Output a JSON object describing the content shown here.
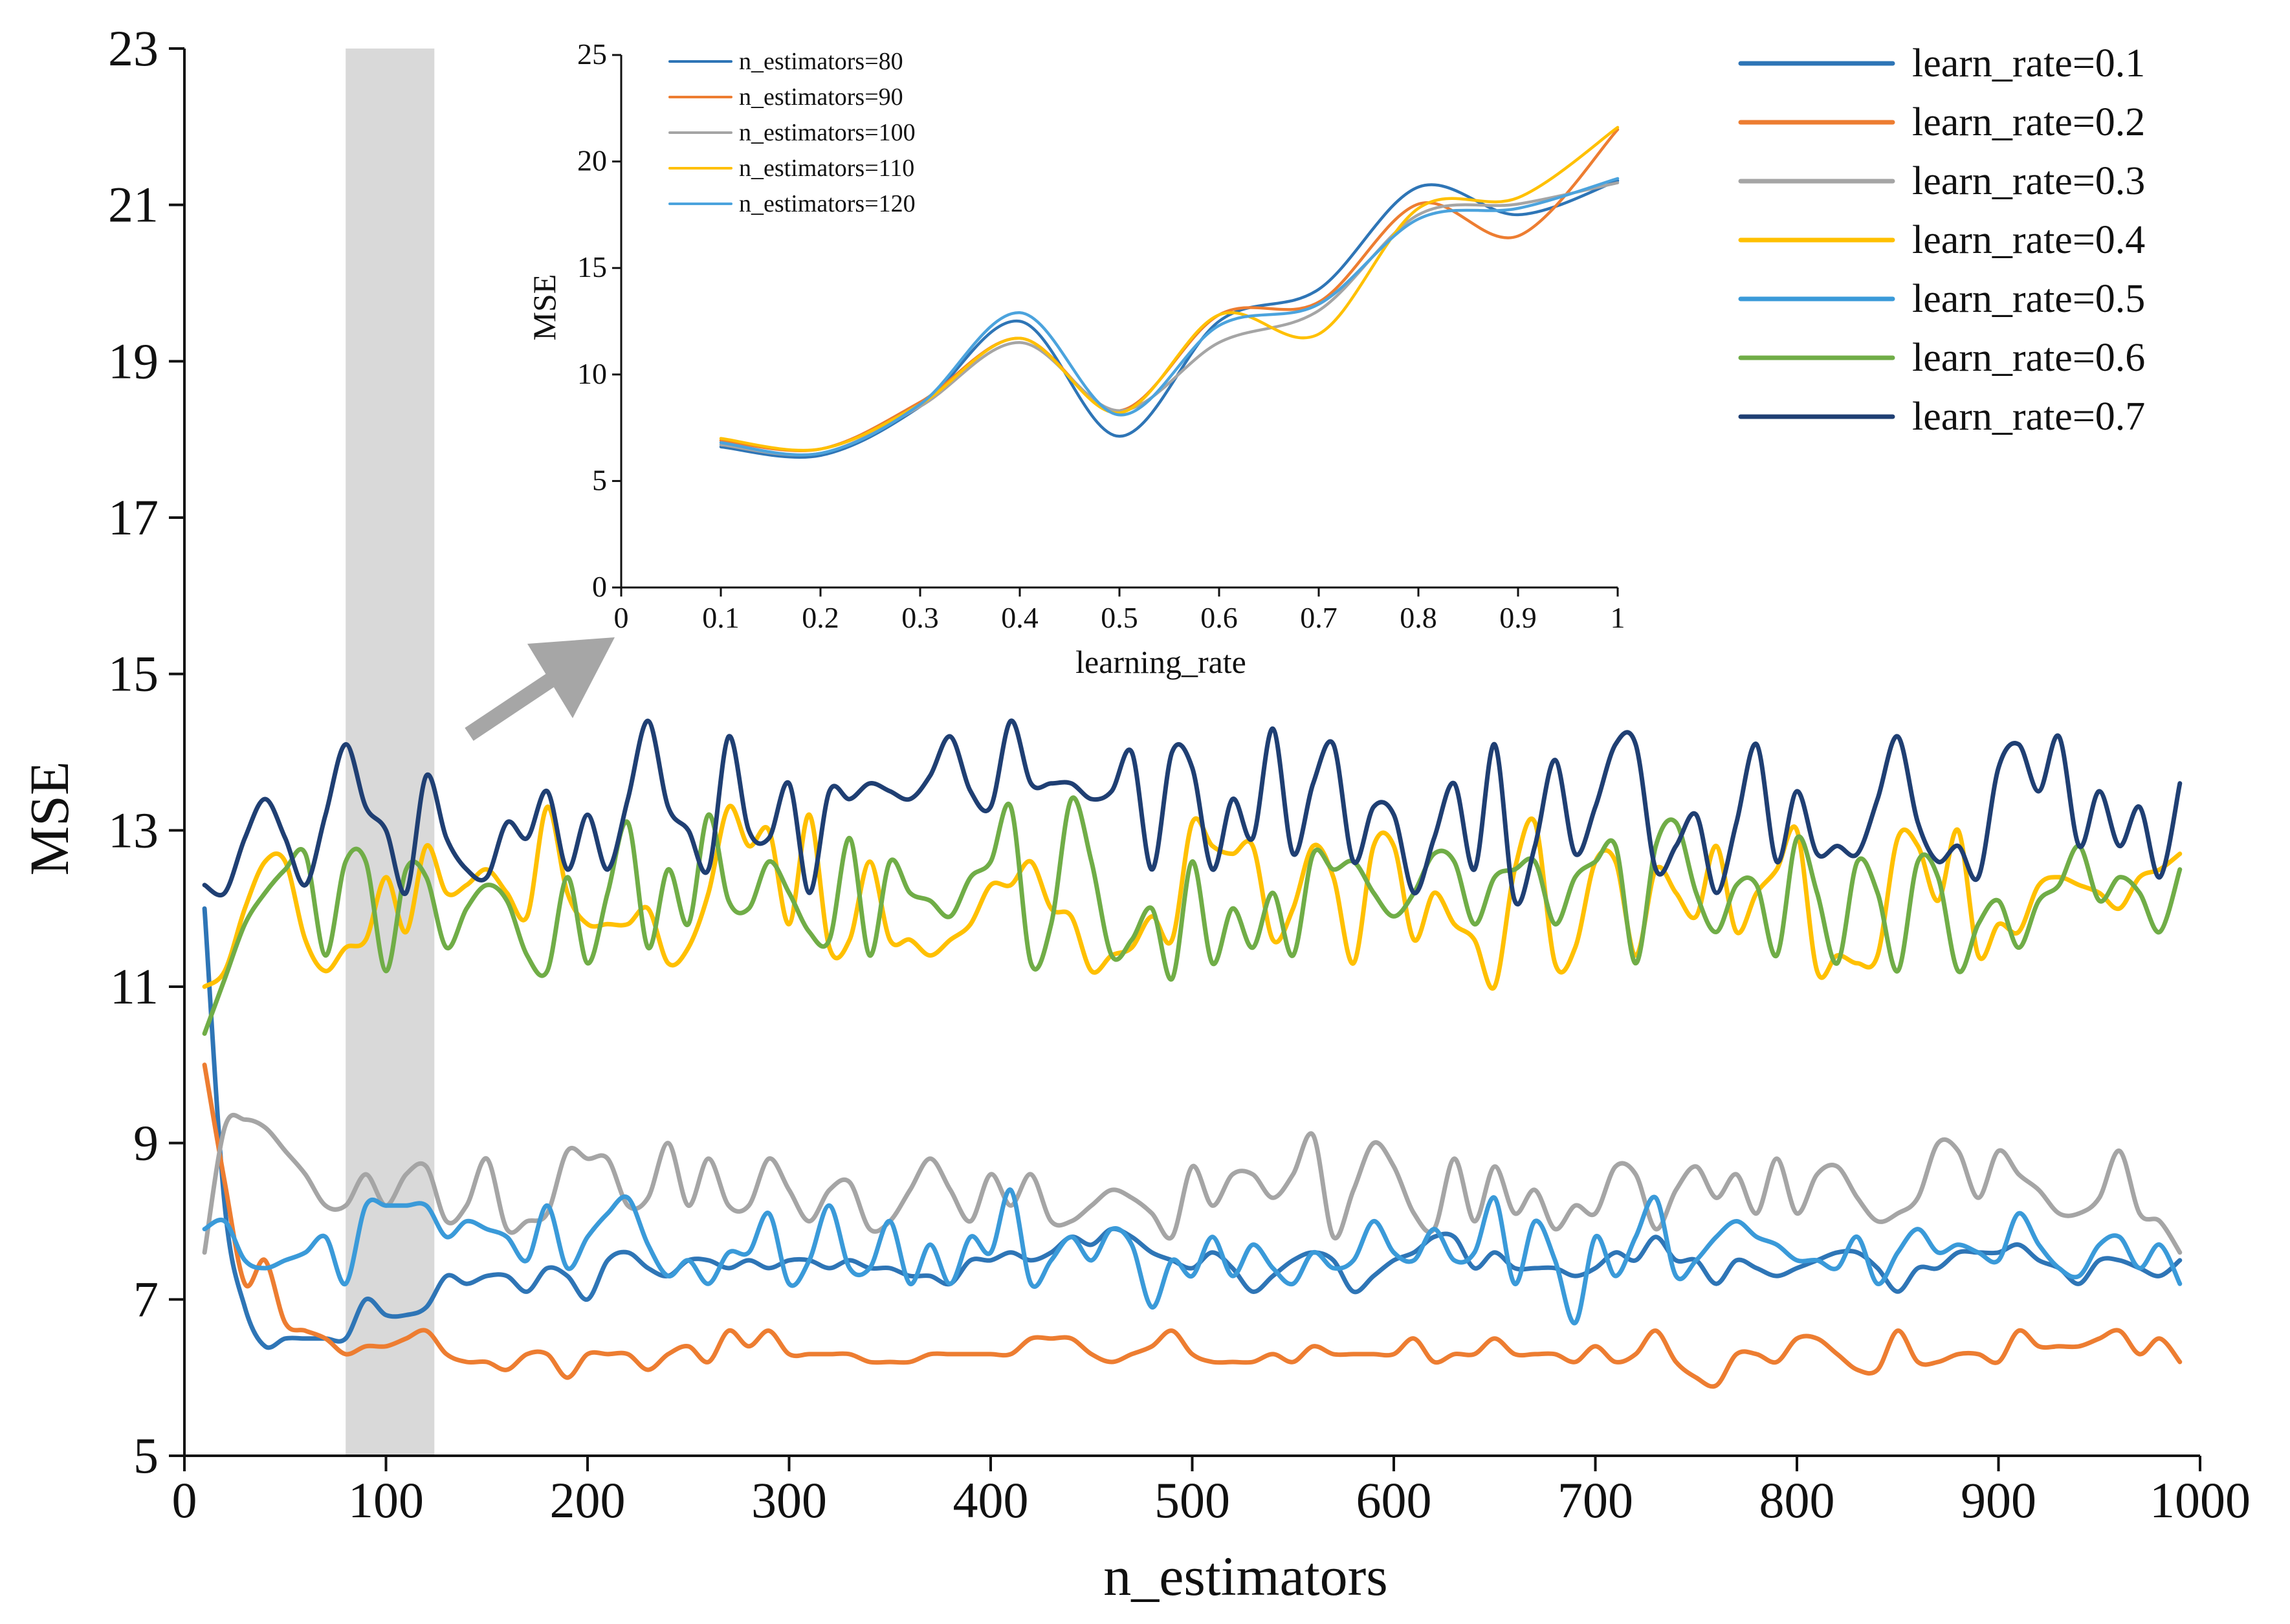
{
  "chart_data": [
    {
      "type": "line",
      "name": "main",
      "xlabel": "n_estimators",
      "ylabel": "MSE",
      "xlim": [
        0,
        1000
      ],
      "ylim": [
        5,
        23
      ],
      "xticks": [
        0,
        100,
        200,
        300,
        400,
        500,
        600,
        700,
        800,
        900,
        1000
      ],
      "xtick_labels": [
        "0",
        "100",
        "200",
        "300",
        "400",
        "500",
        "600",
        "700",
        "800",
        "900",
        "1000"
      ],
      "yticks": [
        5,
        7,
        9,
        11,
        13,
        15,
        17,
        19,
        21,
        23
      ],
      "ytick_labels": [
        "5",
        "7",
        "9",
        "11",
        "13",
        "15",
        "17",
        "19",
        "21",
        "23"
      ],
      "highlight_band": {
        "x_start": 80,
        "x_end": 124,
        "color": "#d9d9d9"
      },
      "x": [
        10,
        20,
        30,
        40,
        50,
        60,
        70,
        80,
        90,
        100,
        110,
        120,
        130,
        140,
        150,
        160,
        170,
        180,
        190,
        200,
        210,
        220,
        230,
        240,
        250,
        260,
        270,
        280,
        290,
        300,
        310,
        320,
        330,
        340,
        350,
        360,
        370,
        380,
        390,
        400,
        410,
        420,
        430,
        440,
        450,
        460,
        470,
        480,
        490,
        500,
        510,
        520,
        530,
        540,
        550,
        560,
        570,
        580,
        590,
        600,
        610,
        620,
        630,
        640,
        650,
        660,
        670,
        680,
        690,
        700,
        710,
        720,
        730,
        740,
        750,
        760,
        770,
        780,
        790,
        800,
        810,
        820,
        830,
        840,
        850,
        860,
        870,
        880,
        890,
        900,
        910,
        920,
        930,
        940,
        950,
        960,
        970,
        980,
        990
      ],
      "series": [
        {
          "name": "learn_rate=0.1",
          "color": "#2e75b6",
          "values": [
            12.0,
            8.2,
            6.9,
            6.4,
            6.5,
            6.5,
            6.5,
            6.5,
            7.0,
            6.8,
            6.8,
            6.9,
            7.3,
            7.2,
            7.3,
            7.3,
            7.1,
            7.4,
            7.3,
            7.0,
            7.5,
            7.6,
            7.4,
            7.3,
            7.5,
            7.5,
            7.4,
            7.5,
            7.4,
            7.5,
            7.5,
            7.4,
            7.5,
            7.4,
            7.4,
            7.3,
            7.3,
            7.2,
            7.5,
            7.5,
            7.6,
            7.5,
            7.6,
            7.8,
            7.7,
            7.9,
            7.8,
            7.6,
            7.5,
            7.4,
            7.6,
            7.4,
            7.1,
            7.3,
            7.5,
            7.6,
            7.5,
            7.1,
            7.3,
            7.5,
            7.6,
            7.8,
            7.8,
            7.4,
            7.6,
            7.4,
            7.4,
            7.4,
            7.3,
            7.4,
            7.6,
            7.5,
            7.8,
            7.5,
            7.5,
            7.2,
            7.5,
            7.4,
            7.3,
            7.4,
            7.5,
            7.6,
            7.6,
            7.4,
            7.1,
            7.4,
            7.4,
            7.6,
            7.6,
            7.6,
            7.7,
            7.5,
            7.4,
            7.2,
            7.5,
            7.5,
            7.4,
            7.3,
            7.5
          ]
        },
        {
          "name": "learn_rate=0.2",
          "color": "#ed7d31",
          "values": [
            10.0,
            8.5,
            7.2,
            7.5,
            6.7,
            6.6,
            6.5,
            6.3,
            6.4,
            6.4,
            6.5,
            6.6,
            6.3,
            6.2,
            6.2,
            6.1,
            6.3,
            6.3,
            6.0,
            6.3,
            6.3,
            6.3,
            6.1,
            6.3,
            6.4,
            6.2,
            6.6,
            6.4,
            6.6,
            6.3,
            6.3,
            6.3,
            6.3,
            6.2,
            6.2,
            6.2,
            6.3,
            6.3,
            6.3,
            6.3,
            6.3,
            6.5,
            6.5,
            6.5,
            6.3,
            6.2,
            6.3,
            6.4,
            6.6,
            6.3,
            6.2,
            6.2,
            6.2,
            6.3,
            6.2,
            6.4,
            6.3,
            6.3,
            6.3,
            6.3,
            6.5,
            6.2,
            6.3,
            6.3,
            6.5,
            6.3,
            6.3,
            6.3,
            6.2,
            6.4,
            6.2,
            6.3,
            6.6,
            6.2,
            6.0,
            5.9,
            6.3,
            6.3,
            6.2,
            6.5,
            6.5,
            6.3,
            6.1,
            6.1,
            6.6,
            6.2,
            6.2,
            6.3,
            6.3,
            6.2,
            6.6,
            6.4,
            6.4,
            6.4,
            6.5,
            6.6,
            6.3,
            6.5,
            6.2
          ]
        },
        {
          "name": "learn_rate=0.3",
          "color": "#a5a5a5",
          "values": [
            7.6,
            9.2,
            9.3,
            9.2,
            8.9,
            8.6,
            8.2,
            8.2,
            8.6,
            8.2,
            8.6,
            8.7,
            8.0,
            8.2,
            8.8,
            7.9,
            8.0,
            8.1,
            8.9,
            8.8,
            8.8,
            8.2,
            8.3,
            9.0,
            8.2,
            8.8,
            8.2,
            8.2,
            8.8,
            8.4,
            8.0,
            8.4,
            8.5,
            7.9,
            8.0,
            8.4,
            8.8,
            8.4,
            8.0,
            8.6,
            8.2,
            8.6,
            8.0,
            8.0,
            8.2,
            8.4,
            8.3,
            8.1,
            7.8,
            8.7,
            8.2,
            8.6,
            8.6,
            8.3,
            8.6,
            9.1,
            7.8,
            8.4,
            9.0,
            8.7,
            8.1,
            7.9,
            8.8,
            8.0,
            8.7,
            8.1,
            8.4,
            7.9,
            8.2,
            8.1,
            8.7,
            8.6,
            7.9,
            8.4,
            8.7,
            8.3,
            8.6,
            8.1,
            8.8,
            8.1,
            8.6,
            8.7,
            8.3,
            8.0,
            8.1,
            8.3,
            9.0,
            8.9,
            8.3,
            8.9,
            8.6,
            8.4,
            8.1,
            8.1,
            8.3,
            8.9,
            8.1,
            8.0,
            7.6
          ]
        },
        {
          "name": "learn_rate=0.4",
          "color": "#ffc000",
          "values": [
            11.0,
            11.2,
            12.0,
            12.6,
            12.6,
            11.6,
            11.2,
            11.5,
            11.6,
            12.4,
            11.7,
            12.8,
            12.2,
            12.3,
            12.5,
            12.2,
            11.9,
            13.3,
            12.2,
            11.8,
            11.8,
            11.8,
            12.0,
            11.3,
            11.5,
            12.2,
            13.3,
            12.8,
            13.0,
            11.8,
            13.2,
            11.5,
            11.6,
            12.6,
            11.6,
            11.6,
            11.4,
            11.6,
            11.8,
            12.3,
            12.3,
            12.6,
            12.0,
            11.9,
            11.2,
            11.4,
            11.5,
            11.9,
            11.6,
            13.1,
            12.8,
            12.7,
            12.8,
            11.6,
            12.0,
            12.8,
            12.4,
            11.3,
            12.8,
            12.8,
            11.6,
            12.2,
            11.8,
            11.6,
            11.0,
            12.5,
            13.1,
            11.3,
            11.5,
            12.6,
            12.6,
            11.4,
            12.5,
            12.2,
            11.9,
            12.8,
            11.7,
            12.2,
            12.5,
            13.0,
            11.2,
            11.4,
            11.3,
            11.4,
            12.9,
            12.8,
            12.1,
            13.0,
            11.4,
            11.8,
            11.7,
            12.3,
            12.4,
            12.3,
            12.2,
            12.0,
            12.4,
            12.5,
            12.7
          ]
        },
        {
          "name": "learn_rate=0.5",
          "color": "#3a9ad9",
          "values": [
            7.9,
            8.0,
            7.5,
            7.4,
            7.5,
            7.6,
            7.8,
            7.2,
            8.2,
            8.2,
            8.2,
            8.2,
            7.8,
            8.0,
            7.9,
            7.8,
            7.5,
            8.2,
            7.4,
            7.8,
            8.1,
            8.3,
            7.7,
            7.3,
            7.5,
            7.2,
            7.6,
            7.6,
            8.1,
            7.2,
            7.5,
            8.2,
            7.4,
            7.4,
            8.0,
            7.2,
            7.7,
            7.2,
            7.8,
            7.6,
            8.4,
            7.2,
            7.5,
            7.8,
            7.5,
            7.9,
            7.7,
            6.9,
            7.5,
            7.3,
            7.8,
            7.3,
            7.7,
            7.4,
            7.2,
            7.6,
            7.4,
            7.5,
            8.0,
            7.6,
            7.5,
            7.9,
            7.5,
            7.6,
            8.3,
            7.2,
            8.0,
            7.5,
            6.7,
            7.8,
            7.3,
            7.8,
            8.3,
            7.3,
            7.5,
            7.8,
            8.0,
            7.8,
            7.7,
            7.5,
            7.5,
            7.4,
            7.8,
            7.2,
            7.6,
            7.9,
            7.6,
            7.7,
            7.6,
            7.5,
            8.1,
            7.7,
            7.4,
            7.3,
            7.7,
            7.8,
            7.4,
            7.7,
            7.2
          ]
        },
        {
          "name": "learn_rate=0.6",
          "color": "#70ad47",
          "values": [
            10.4,
            11.1,
            11.8,
            12.2,
            12.5,
            12.7,
            11.4,
            12.6,
            12.6,
            11.2,
            12.5,
            12.4,
            11.5,
            12.0,
            12.3,
            12.1,
            11.4,
            11.2,
            12.4,
            11.3,
            12.2,
            13.1,
            11.5,
            12.5,
            11.8,
            13.2,
            12.1,
            12.0,
            12.6,
            12.2,
            11.7,
            11.6,
            12.9,
            11.4,
            12.6,
            12.2,
            12.1,
            11.9,
            12.4,
            12.6,
            13.3,
            11.3,
            11.8,
            13.4,
            12.6,
            11.4,
            11.6,
            12.0,
            11.1,
            12.6,
            11.3,
            12.0,
            11.5,
            12.2,
            11.4,
            12.7,
            12.5,
            12.6,
            12.2,
            11.9,
            12.2,
            12.7,
            12.6,
            11.8,
            12.4,
            12.5,
            12.6,
            11.8,
            12.4,
            12.6,
            12.8,
            11.3,
            12.8,
            13.1,
            12.2,
            11.7,
            12.3,
            12.3,
            11.4,
            12.9,
            12.2,
            11.3,
            12.6,
            12.2,
            11.2,
            12.6,
            12.4,
            11.2,
            11.8,
            12.1,
            11.5,
            12.1,
            12.3,
            12.8,
            12.1,
            12.4,
            12.2,
            11.7,
            12.5
          ]
        },
        {
          "name": "learn_rate=0.7",
          "color": "#1f3f73",
          "values": [
            12.3,
            12.2,
            12.9,
            13.4,
            12.9,
            12.3,
            13.2,
            14.1,
            13.3,
            13.0,
            12.2,
            13.7,
            12.9,
            12.5,
            12.4,
            13.1,
            12.9,
            13.5,
            12.5,
            13.2,
            12.5,
            13.4,
            14.4,
            13.3,
            13.0,
            12.5,
            14.2,
            13.0,
            12.9,
            13.6,
            12.2,
            13.5,
            13.4,
            13.6,
            13.5,
            13.4,
            13.7,
            14.2,
            13.5,
            13.3,
            14.4,
            13.6,
            13.6,
            13.6,
            13.4,
            13.5,
            14.0,
            12.5,
            14.0,
            13.8,
            12.5,
            13.4,
            12.9,
            14.3,
            12.7,
            13.6,
            14.1,
            12.6,
            13.3,
            13.2,
            12.2,
            12.9,
            13.6,
            12.5,
            14.1,
            12.1,
            12.8,
            13.9,
            12.7,
            13.3,
            14.1,
            14.1,
            12.5,
            12.8,
            13.2,
            12.2,
            13.1,
            14.1,
            12.6,
            13.5,
            12.7,
            12.8,
            12.7,
            13.4,
            14.2,
            13.1,
            12.6,
            12.8,
            12.4,
            13.8,
            14.1,
            13.5,
            14.2,
            12.8,
            13.5,
            12.8,
            13.3,
            12.4,
            13.6
          ]
        }
      ],
      "legend": {
        "placement": "top-right",
        "entries": [
          "learn_rate=0.1",
          "learn_rate=0.2",
          "learn_rate=0.3",
          "learn_rate=0.4",
          "learn_rate=0.5",
          "learn_rate=0.6",
          "learn_rate=0.7"
        ]
      }
    },
    {
      "type": "line",
      "name": "inset",
      "xlabel": "learning_rate",
      "ylabel": "MSE",
      "xlim": [
        0,
        1
      ],
      "ylim": [
        0,
        25
      ],
      "xticks": [
        0,
        0.1,
        0.2,
        0.3,
        0.4,
        0.5,
        0.6,
        0.7,
        0.8,
        0.9,
        1
      ],
      "xtick_labels": [
        "0",
        "0.1",
        "0.2",
        "0.3",
        "0.4",
        "0.5",
        "0.6",
        "0.7",
        "0.8",
        "0.9",
        "1"
      ],
      "yticks": [
        0,
        5,
        10,
        15,
        20,
        25
      ],
      "ytick_labels": [
        "0",
        "5",
        "10",
        "15",
        "20",
        "25"
      ],
      "x": [
        0.1,
        0.2,
        0.3,
        0.4,
        0.5,
        0.6,
        0.7,
        0.8,
        0.9,
        1.0
      ],
      "series": [
        {
          "name": "n_estimators=80",
          "color": "#2e75b6",
          "values": [
            6.6,
            6.2,
            8.5,
            12.5,
            7.1,
            12.5,
            14.0,
            18.8,
            17.5,
            19.1
          ]
        },
        {
          "name": "n_estimators=90",
          "color": "#ed7d31",
          "values": [
            6.9,
            6.5,
            8.7,
            11.7,
            8.3,
            12.8,
            13.4,
            18.0,
            16.5,
            21.5
          ]
        },
        {
          "name": "n_estimators=100",
          "color": "#a5a5a5",
          "values": [
            6.7,
            6.3,
            8.5,
            11.5,
            8.3,
            11.5,
            13.0,
            17.5,
            18.0,
            19.0
          ]
        },
        {
          "name": "n_estimators=110",
          "color": "#ffc000",
          "values": [
            7.0,
            6.5,
            8.6,
            11.7,
            8.2,
            12.8,
            11.9,
            17.8,
            18.3,
            21.6
          ]
        },
        {
          "name": "n_estimators=120",
          "color": "#4ba3dd",
          "values": [
            6.8,
            6.3,
            8.6,
            12.9,
            8.1,
            12.3,
            13.3,
            17.3,
            17.8,
            19.2
          ]
        }
      ],
      "legend": {
        "placement": "top-left",
        "entries": [
          "n_estimators=80",
          "n_estimators=90",
          "n_estimators=100",
          "n_estimators=110",
          "n_estimators=120"
        ]
      }
    }
  ],
  "arrow_color": "#a6a6a6"
}
